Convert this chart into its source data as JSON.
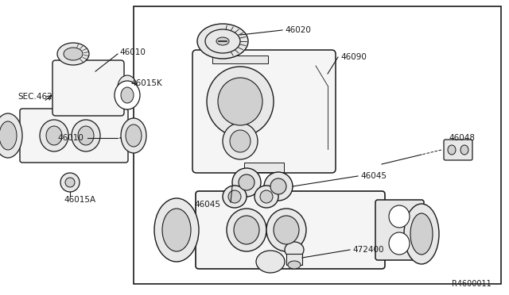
{
  "bg_color": "#ffffff",
  "line_color": "#1a1a1a",
  "fill_light": "#f5f5f5",
  "fill_mid": "#e8e8e8",
  "fill_dark": "#d0d0d0",
  "fig_width": 6.4,
  "fig_height": 3.72,
  "dpi": 100,
  "diagram_ref": "R4600011",
  "label_46020": "46020",
  "label_46090": "46090",
  "label_46045a": "46045",
  "label_46045b": "46045",
  "label_46048": "46048",
  "label_472400": "472400",
  "label_46010a": "46010",
  "label_46010b": "46010",
  "label_46015K": "46015K",
  "label_46015A": "46015A",
  "label_SEC462": "SEC.462"
}
